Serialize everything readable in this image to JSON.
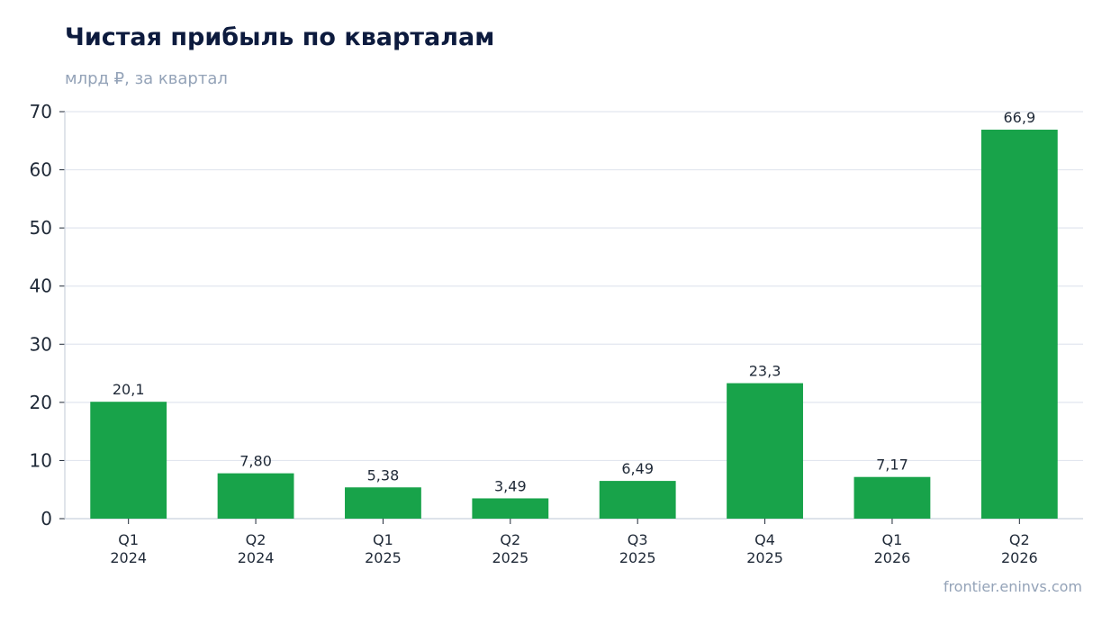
{
  "chart_data": {
    "type": "bar",
    "title": "Чистая прибыль по кварталам",
    "subtitle": "млрд ₽, за квартал",
    "source": "frontier.eninvs.com",
    "categories": [
      "Q1 2024",
      "Q2 2024",
      "Q1 2025",
      "Q2 2025",
      "Q3 2025",
      "Q4 2025",
      "Q1 2026",
      "Q2 2026"
    ],
    "category_lines": [
      [
        "Q1",
        "2024"
      ],
      [
        "Q2",
        "2024"
      ],
      [
        "Q1",
        "2025"
      ],
      [
        "Q2",
        "2025"
      ],
      [
        "Q3",
        "2025"
      ],
      [
        "Q4",
        "2025"
      ],
      [
        "Q1",
        "2026"
      ],
      [
        "Q2",
        "2026"
      ]
    ],
    "values": [
      20.1,
      7.8,
      5.38,
      3.49,
      6.49,
      23.3,
      7.17,
      66.9
    ],
    "value_labels": [
      "20,1",
      "7,80",
      "5,38",
      "3,49",
      "6,49",
      "23,3",
      "7,17",
      "66,9"
    ],
    "yticks": [
      0,
      10,
      20,
      30,
      40,
      50,
      60,
      70
    ],
    "ylim": [
      0,
      70
    ],
    "grid": true,
    "colors": {
      "bar": "#18a34a",
      "grid": "#e2e6ef",
      "axis": "#cbd2dd"
    }
  }
}
